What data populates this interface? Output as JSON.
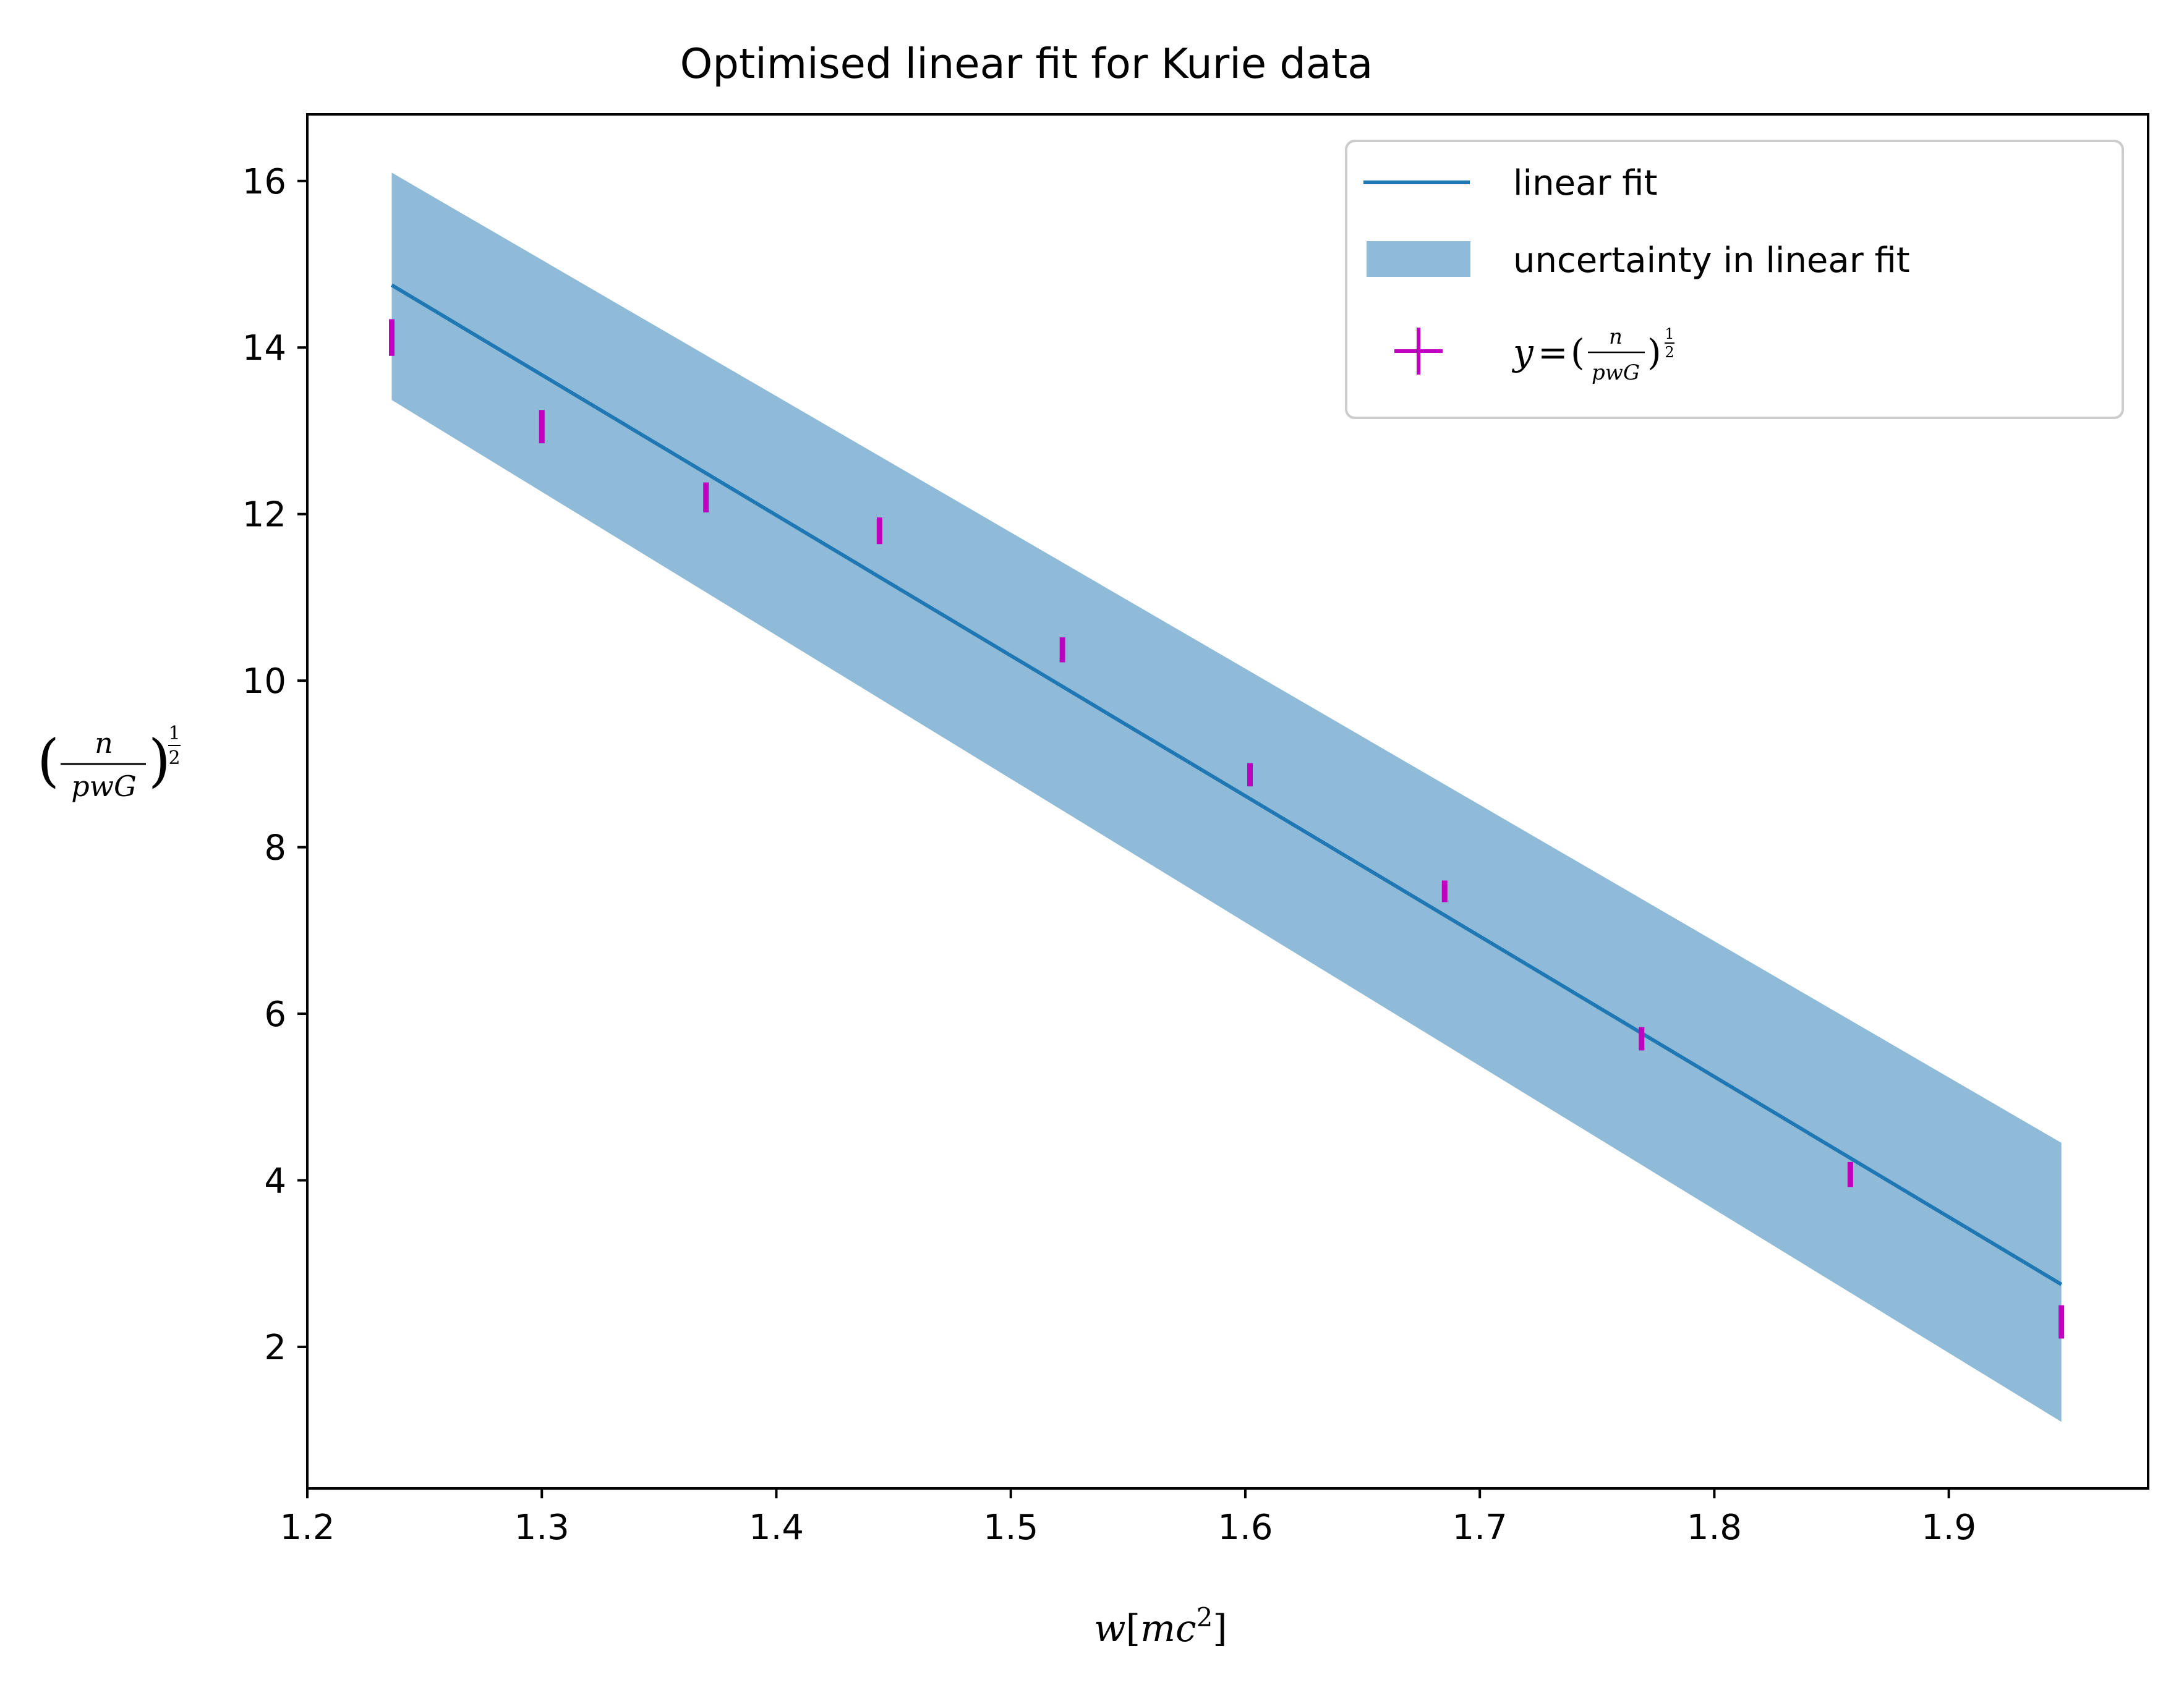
{
  "chart_data": {
    "type": "line",
    "title": "Optimised linear fit for Kurie data",
    "xlabel": "w[mc²]",
    "ylabel": "(n/pwG)^(1/2)",
    "xlim": [
      1.2,
      1.985
    ],
    "ylim": [
      0.3,
      16.8
    ],
    "xticks": [
      1.2,
      1.3,
      1.4,
      1.5,
      1.6,
      1.7,
      1.8,
      1.9
    ],
    "xtick_labels": [
      "1.2",
      "1.3",
      "1.4",
      "1.5",
      "1.6",
      "1.7",
      "1.8",
      "1.9"
    ],
    "yticks": [
      2,
      4,
      6,
      8,
      10,
      12,
      14,
      16
    ],
    "ytick_labels": [
      "2",
      "4",
      "6",
      "8",
      "10",
      "12",
      "14",
      "16"
    ],
    "grid": false,
    "legend_position": "top-right",
    "series": [
      {
        "name": "linear fit",
        "kind": "line",
        "color": "#1f77b4",
        "x": [
          1.236,
          1.948
        ],
        "y": [
          14.75,
          2.75
        ]
      },
      {
        "name": "uncertainty in linear fit",
        "kind": "band",
        "color": "#1f77b4",
        "alpha": 0.5,
        "x": [
          1.236,
          1.948
        ],
        "upper": [
          16.1,
          4.45
        ],
        "lower": [
          13.37,
          1.1
        ]
      },
      {
        "name": "y = (n/pwG)^(1/2)",
        "kind": "errorbar",
        "color": "#bf00bf",
        "x": [
          1.236,
          1.3,
          1.37,
          1.444,
          1.522,
          1.602,
          1.685,
          1.769,
          1.858,
          1.948
        ],
        "y": [
          14.12,
          13.05,
          12.2,
          11.8,
          10.37,
          8.87,
          7.47,
          5.7,
          4.07,
          2.3
        ],
        "yerr": [
          0.22,
          0.2,
          0.18,
          0.16,
          0.15,
          0.14,
          0.13,
          0.14,
          0.15,
          0.2
        ]
      }
    ]
  }
}
